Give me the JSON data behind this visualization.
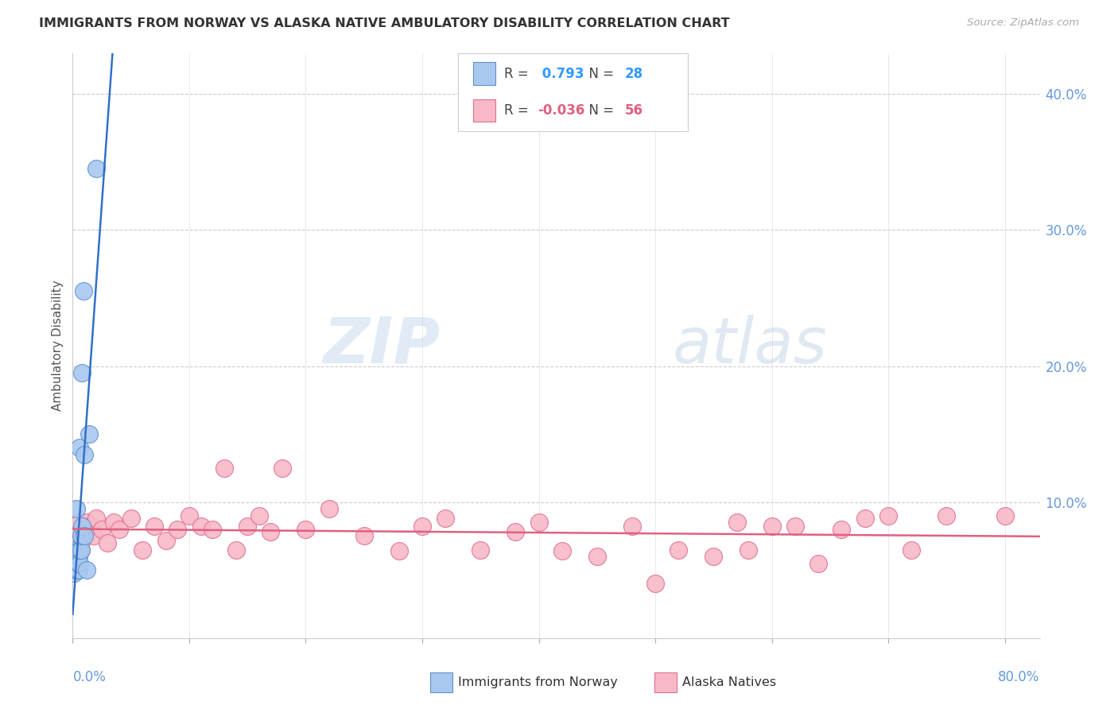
{
  "title": "IMMIGRANTS FROM NORWAY VS ALASKA NATIVE AMBULATORY DISABILITY CORRELATION CHART",
  "source": "Source: ZipAtlas.com",
  "ylabel": "Ambulatory Disability",
  "ytick_vals": [
    0.0,
    0.1,
    0.2,
    0.3,
    0.4
  ],
  "legend_blue": {
    "R": 0.793,
    "N": 28
  },
  "legend_pink": {
    "R": -0.036,
    "N": 56
  },
  "norway_color": "#A8C8F0",
  "alaska_color": "#F8B8C8",
  "norway_edge_color": "#6090C8",
  "alaska_edge_color": "#E07090",
  "norway_line_color": "#3070C8",
  "alaska_line_color": "#E06080",
  "norway_x": [
    0.001,
    0.001,
    0.002,
    0.002,
    0.003,
    0.003,
    0.003,
    0.003,
    0.004,
    0.004,
    0.004,
    0.005,
    0.005,
    0.005,
    0.005,
    0.006,
    0.006,
    0.006,
    0.007,
    0.007,
    0.008,
    0.008,
    0.009,
    0.01,
    0.01,
    0.012,
    0.014,
    0.02
  ],
  "norway_y": [
    0.048,
    0.055,
    0.06,
    0.065,
    0.05,
    0.058,
    0.063,
    0.095,
    0.05,
    0.055,
    0.062,
    0.05,
    0.055,
    0.06,
    0.065,
    0.055,
    0.065,
    0.14,
    0.065,
    0.075,
    0.082,
    0.195,
    0.255,
    0.075,
    0.135,
    0.05,
    0.15,
    0.345
  ],
  "alaska_x": [
    0.003,
    0.004,
    0.005,
    0.006,
    0.007,
    0.008,
    0.009,
    0.01,
    0.012,
    0.015,
    0.018,
    0.02,
    0.025,
    0.03,
    0.035,
    0.04,
    0.05,
    0.06,
    0.07,
    0.08,
    0.09,
    0.1,
    0.11,
    0.12,
    0.13,
    0.14,
    0.15,
    0.16,
    0.17,
    0.18,
    0.2,
    0.22,
    0.25,
    0.28,
    0.3,
    0.32,
    0.35,
    0.38,
    0.4,
    0.42,
    0.45,
    0.48,
    0.5,
    0.52,
    0.55,
    0.57,
    0.58,
    0.6,
    0.62,
    0.64,
    0.66,
    0.68,
    0.7,
    0.72,
    0.75,
    0.8
  ],
  "alaska_y": [
    0.065,
    0.075,
    0.07,
    0.085,
    0.065,
    0.072,
    0.08,
    0.078,
    0.085,
    0.082,
    0.075,
    0.088,
    0.08,
    0.07,
    0.085,
    0.08,
    0.088,
    0.065,
    0.082,
    0.072,
    0.08,
    0.09,
    0.082,
    0.08,
    0.125,
    0.065,
    0.082,
    0.09,
    0.078,
    0.125,
    0.08,
    0.095,
    0.075,
    0.064,
    0.082,
    0.088,
    0.065,
    0.078,
    0.085,
    0.064,
    0.06,
    0.082,
    0.04,
    0.065,
    0.06,
    0.085,
    0.065,
    0.082,
    0.082,
    0.055,
    0.08,
    0.088,
    0.09,
    0.065,
    0.09,
    0.09
  ]
}
